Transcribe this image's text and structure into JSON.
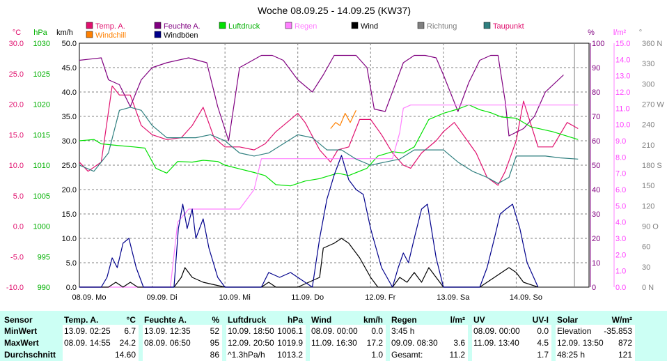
{
  "title": "Woche 08.09.25 - 14.09.25 (KW37)",
  "colors": {
    "temp": "#e0106e",
    "feuchte": "#800080",
    "luftdruck": "#00e000",
    "regen": "#ff80ff",
    "wind": "#000000",
    "richtung": "#808080",
    "taupunkt": "#2f7f7f",
    "windchill": "#ff8000",
    "windboeen": "#00008b",
    "grid": "#808080",
    "table_bg": "#ccfff4"
  },
  "legend": {
    "row1": [
      {
        "label": "Temp. A.",
        "color": "#e0106e",
        "text_color": "#e0106e"
      },
      {
        "label": "Feuchte A.",
        "color": "#800080",
        "text_color": "#800080"
      },
      {
        "label": "Luftdruck",
        "color": "#00e000",
        "text_color": "#00b000"
      },
      {
        "label": "Regen",
        "color": "#ff80ff",
        "text_color": "#ff80ff"
      },
      {
        "label": "Wind",
        "color": "#000000",
        "text_color": "#000000"
      },
      {
        "label": "Richtung",
        "color": "#808080",
        "text_color": "#808080"
      },
      {
        "label": "Taupunkt",
        "color": "#2f7f7f",
        "text_color": "#e0106e"
      }
    ],
    "row2": [
      {
        "label": "Windchill",
        "color": "#ff8000",
        "text_color": "#ff8000"
      },
      {
        "label": "Windböen",
        "color": "#00008b",
        "text_color": "#000000"
      }
    ]
  },
  "axis_units": {
    "temp": "°C",
    "pressure": "hPa",
    "wind": "km/h",
    "humidity": "%",
    "rain": "l/m²",
    "direction": "°"
  },
  "chart_data": {
    "type": "line",
    "x_labels": [
      "08.09. Mo",
      "09.09. Di",
      "10.09. Mi",
      "11.09. Do",
      "12.09. Fr",
      "13.09. Sa",
      "14.09. So"
    ],
    "x_range_days": [
      0,
      7
    ],
    "axes": {
      "temp_c": {
        "min": -10,
        "max": 30,
        "ticks": [
          "30.0",
          "25.0",
          "20.0",
          "15.0",
          "10.0",
          "5.0",
          "0.0",
          "-5.0",
          "-10.0"
        ]
      },
      "pressure_hpa": {
        "min": 990,
        "max": 1030,
        "ticks": [
          "1030",
          "1025",
          "1020",
          "1015",
          "1010",
          "1005",
          "1000",
          "995",
          "990"
        ]
      },
      "wind_kmh": {
        "min": 0,
        "max": 50,
        "ticks": [
          "50.0",
          "45.0",
          "40.0",
          "35.0",
          "30.0",
          "25.0",
          "20.0",
          "15.0",
          "10.0",
          "5.0",
          "0.0"
        ]
      },
      "humidity_pct": {
        "min": 0,
        "max": 100,
        "ticks": [
          "100",
          "90",
          "80",
          "70",
          "60",
          "50",
          "40",
          "30",
          "20",
          "10",
          "0"
        ]
      },
      "rain_lm2": {
        "min": 0,
        "max": 15,
        "ticks": [
          "15.0",
          "14.0",
          "13.0",
          "12.0",
          "11.0",
          "10.0",
          "9.0",
          "8.0",
          "7.0",
          "6.0",
          "5.0",
          "4.0",
          "3.0",
          "2.0",
          "1.0",
          "0.0"
        ]
      },
      "direction_deg": {
        "min": 0,
        "max": 360,
        "ticks": [
          "360 N",
          "330",
          "300",
          "270 W",
          "240",
          "210",
          "180 S",
          "150",
          "120",
          "90 O",
          "60",
          "30",
          "0 N"
        ]
      }
    },
    "series": [
      {
        "name": "Temp. A.",
        "axis": "temp_c",
        "color": "#e0106e",
        "x": [
          0,
          0.12,
          0.3,
          0.45,
          0.55,
          0.7,
          0.85,
          1,
          1.2,
          1.4,
          1.55,
          1.7,
          1.85,
          2,
          2.2,
          2.4,
          2.55,
          2.7,
          2.9,
          3,
          3.1,
          3.3,
          3.45,
          3.55,
          3.7,
          3.85,
          4,
          4.15,
          4.3,
          4.45,
          4.55,
          4.7,
          4.9,
          5,
          5.15,
          5.3,
          5.45,
          5.6,
          5.75,
          5.85,
          6,
          6.1,
          6.3,
          6.5,
          6.7,
          6.85
        ],
        "y": [
          10.5,
          9,
          10.5,
          23,
          21.5,
          21.5,
          16.5,
          15,
          14.2,
          14.5,
          16.5,
          19.5,
          14.5,
          13,
          13,
          12.5,
          13.5,
          15.5,
          17.5,
          18.5,
          17,
          12.5,
          10.5,
          12.5,
          13,
          17.5,
          17.5,
          15,
          12,
          10,
          9.5,
          12,
          14,
          15.5,
          17,
          14.5,
          12,
          8,
          6.7,
          9,
          14,
          20.5,
          13,
          13,
          17,
          16
        ]
      },
      {
        "name": "Feuchte A.",
        "axis": "humidity_pct",
        "color": "#800080",
        "x": [
          0,
          0.3,
          0.4,
          0.55,
          0.7,
          0.85,
          1,
          1.2,
          1.5,
          1.75,
          1.9,
          2.05,
          2.2,
          2.5,
          2.65,
          2.8,
          3,
          3.2,
          3.35,
          3.5,
          3.65,
          3.8,
          3.95,
          4.05,
          4.2,
          4.45,
          4.6,
          4.75,
          4.9,
          5,
          5.2,
          5.35,
          5.5,
          5.65,
          5.75,
          5.85,
          5.9,
          6.1,
          6.25,
          6.4,
          6.65
        ],
        "y": [
          93,
          94,
          85,
          83,
          74,
          85,
          90,
          92,
          94,
          92,
          74,
          60,
          90,
          95,
          95,
          93,
          85,
          80,
          87,
          95,
          95,
          95,
          90,
          73,
          72,
          92,
          95,
          95,
          94,
          87,
          72,
          84,
          93,
          95,
          95,
          76,
          62,
          65,
          70,
          80,
          87
        ]
      },
      {
        "name": "Luftdruck",
        "axis": "pressure_hpa",
        "color": "#00e000",
        "x": [
          0,
          0.2,
          0.3,
          0.55,
          0.75,
          0.9,
          1.05,
          1.2,
          1.35,
          1.55,
          1.7,
          1.9,
          2,
          2.2,
          2.4,
          2.55,
          2.7,
          2.9,
          3.1,
          3.3,
          3.55,
          3.7,
          3.95,
          4.1,
          4.3,
          4.45,
          4.6,
          4.8,
          5,
          5.2,
          5.35,
          5.5,
          5.65,
          5.8,
          6,
          6.2,
          6.5,
          6.85
        ],
        "y": [
          1014,
          1014.2,
          1013.5,
          1013.2,
          1013,
          1012.8,
          1009.5,
          1008.7,
          1010.6,
          1010.5,
          1010.8,
          1010.6,
          1010,
          1009.4,
          1008.8,
          1008.3,
          1006.8,
          1006.6,
          1007.4,
          1007.8,
          1008.7,
          1008.3,
          1009.5,
          1011.5,
          1012.2,
          1012,
          1013,
          1017.5,
          1018.5,
          1019.2,
          1019.9,
          1019.1,
          1018.6,
          1017.9,
          1017.7,
          1016.3,
          1015.5,
          1014.2
        ]
      },
      {
        "name": "Regen",
        "axis": "rain_lm2",
        "color": "#ff80ff",
        "x": [
          0,
          1.25,
          1.35,
          1.5,
          1.95,
          2.2,
          2.4,
          2.5,
          3.6,
          3.75,
          4.3,
          4.4,
          4.45,
          4.55,
          6.85
        ],
        "y": [
          0,
          0,
          4,
          4.8,
          4.8,
          4.8,
          6,
          7.9,
          7.9,
          7.9,
          7.9,
          9.5,
          11,
          11.2,
          11.2
        ]
      },
      {
        "name": "Wind",
        "axis": "wind_kmh",
        "color": "#000000",
        "x": [
          0,
          0.4,
          0.5,
          0.6,
          0.7,
          0.8,
          1.3,
          1.4,
          1.45,
          1.55,
          1.7,
          2,
          2.5,
          2.6,
          2.7,
          2.8,
          3,
          3.3,
          3.35,
          3.5,
          3.6,
          3.7,
          3.85,
          4,
          4.1,
          4.3,
          4.4,
          4.5,
          4.6,
          4.7,
          4.8,
          4.9,
          5,
          5.5,
          5.6,
          5.7,
          5.8,
          5.9,
          6,
          6.1,
          6.3
        ],
        "y": [
          0,
          0,
          1,
          0,
          1,
          0,
          0,
          2,
          4,
          2,
          1,
          0,
          0,
          1,
          0,
          0,
          0,
          2,
          8,
          9,
          10,
          9,
          6,
          2,
          0,
          0,
          2,
          1,
          3,
          1,
          4,
          2,
          0,
          0,
          1,
          2,
          3,
          4,
          3,
          1,
          0
        ]
      },
      {
        "name": "Windböen",
        "axis": "wind_kmh",
        "color": "#00008b",
        "x": [
          0,
          0.3,
          0.38,
          0.45,
          0.52,
          0.6,
          0.68,
          0.78,
          0.88,
          1.3,
          1.36,
          1.42,
          1.48,
          1.55,
          1.6,
          1.7,
          1.78,
          1.9,
          2,
          2.5,
          2.6,
          2.75,
          2.9,
          3.2,
          3.3,
          3.4,
          3.5,
          3.6,
          3.7,
          3.8,
          3.9,
          4,
          4.15,
          4.3,
          4.38,
          4.45,
          4.52,
          4.6,
          4.7,
          4.78,
          4.9,
          5,
          5.5,
          5.6,
          5.7,
          5.78,
          5.86,
          5.95,
          6.05,
          6.15,
          6.3
        ],
        "y": [
          0,
          0,
          2,
          6,
          4,
          9,
          10,
          4,
          0,
          0,
          12,
          17,
          12,
          16,
          10,
          14,
          8,
          2,
          0,
          0,
          3,
          2,
          3,
          0,
          10,
          18,
          23,
          27,
          22,
          20,
          19,
          12,
          4,
          0,
          4,
          7,
          5,
          10,
          16,
          17,
          6,
          0,
          0,
          4,
          10,
          15,
          16,
          17,
          12,
          5,
          0
        ]
      },
      {
        "name": "Taupunkt",
        "axis": "temp_c",
        "color": "#2f7f7f",
        "x": [
          0,
          0.2,
          0.4,
          0.55,
          0.7,
          0.85,
          1,
          1.2,
          1.4,
          1.6,
          1.8,
          2,
          2.2,
          2.4,
          2.6,
          2.8,
          3,
          3.2,
          3.4,
          3.6,
          3.8,
          4,
          4.2,
          4.4,
          4.6,
          4.8,
          5,
          5.2,
          5.4,
          5.6,
          5.75,
          5.9,
          6,
          6.2,
          6.4,
          6.6,
          6.85
        ],
        "y": [
          10,
          9,
          12,
          19,
          19.5,
          19,
          16.5,
          14.5,
          14.5,
          14.5,
          15,
          14,
          12,
          11.5,
          12,
          13.5,
          15,
          14.5,
          12.5,
          12.5,
          11,
          10,
          10.5,
          11,
          12.5,
          12.5,
          12.5,
          10.5,
          9,
          8,
          7,
          8,
          11.5,
          11.5,
          11.5,
          11.2,
          11
        ]
      },
      {
        "name": "Windchill",
        "axis": "temp_c",
        "color": "#ff8000",
        "x": [
          3.45,
          3.52,
          3.58,
          3.65,
          3.72,
          3.8
        ],
        "y": [
          16,
          17,
          16.5,
          18.5,
          17,
          19
        ]
      }
    ]
  },
  "table": {
    "sensor_col": {
      "header": "Sensor",
      "rows": [
        "MinWert",
        "MaxWert",
        "Durchschnitt"
      ]
    },
    "blocks": [
      {
        "title": "Temp. A.",
        "unit": "°C",
        "rows": [
          [
            "13.09.  02:25",
            "6.7"
          ],
          [
            "08.09.  14:55",
            "24.2"
          ],
          [
            "",
            "14.60"
          ]
        ]
      },
      {
        "title": "Feuchte A.",
        "unit": "%",
        "rows": [
          [
            "13.09.  12:35",
            "52"
          ],
          [
            "08.09.  06:50",
            "95"
          ],
          [
            "",
            "86"
          ]
        ]
      },
      {
        "title": "Luftdruck",
        "unit": "hPa",
        "rows": [
          [
            "10.09.  18:50",
            "1006.1"
          ],
          [
            "12.09.  20:50",
            "1019.9"
          ],
          [
            "^1.3hPa/h",
            "1013.2"
          ]
        ]
      },
      {
        "title": "Wind",
        "unit": "km/h",
        "rows": [
          [
            "08.09.  00:00",
            "0.0"
          ],
          [
            "11.09.  16:30",
            "17.2"
          ],
          [
            "",
            "1.0"
          ]
        ]
      },
      {
        "title": "Regen",
        "unit": "l/m²",
        "rows": [
          [
            "3:45 h",
            ""
          ],
          [
            "09.09.  08:30",
            "3.6"
          ],
          [
            "Gesamt:",
            "11.2"
          ]
        ]
      },
      {
        "title": "UV",
        "unit": "UV-I",
        "rows": [
          [
            "08.09.  00:00",
            "0.0"
          ],
          [
            "11.09.  13:40",
            "4.5"
          ],
          [
            "",
            "1.7"
          ]
        ]
      },
      {
        "title": "Solar",
        "unit": "W/m²",
        "rows": [
          [
            "Elevation",
            "-35.853"
          ],
          [
            "12.09.  13:50",
            "872"
          ],
          [
            "48:25 h",
            "121"
          ]
        ]
      }
    ]
  }
}
